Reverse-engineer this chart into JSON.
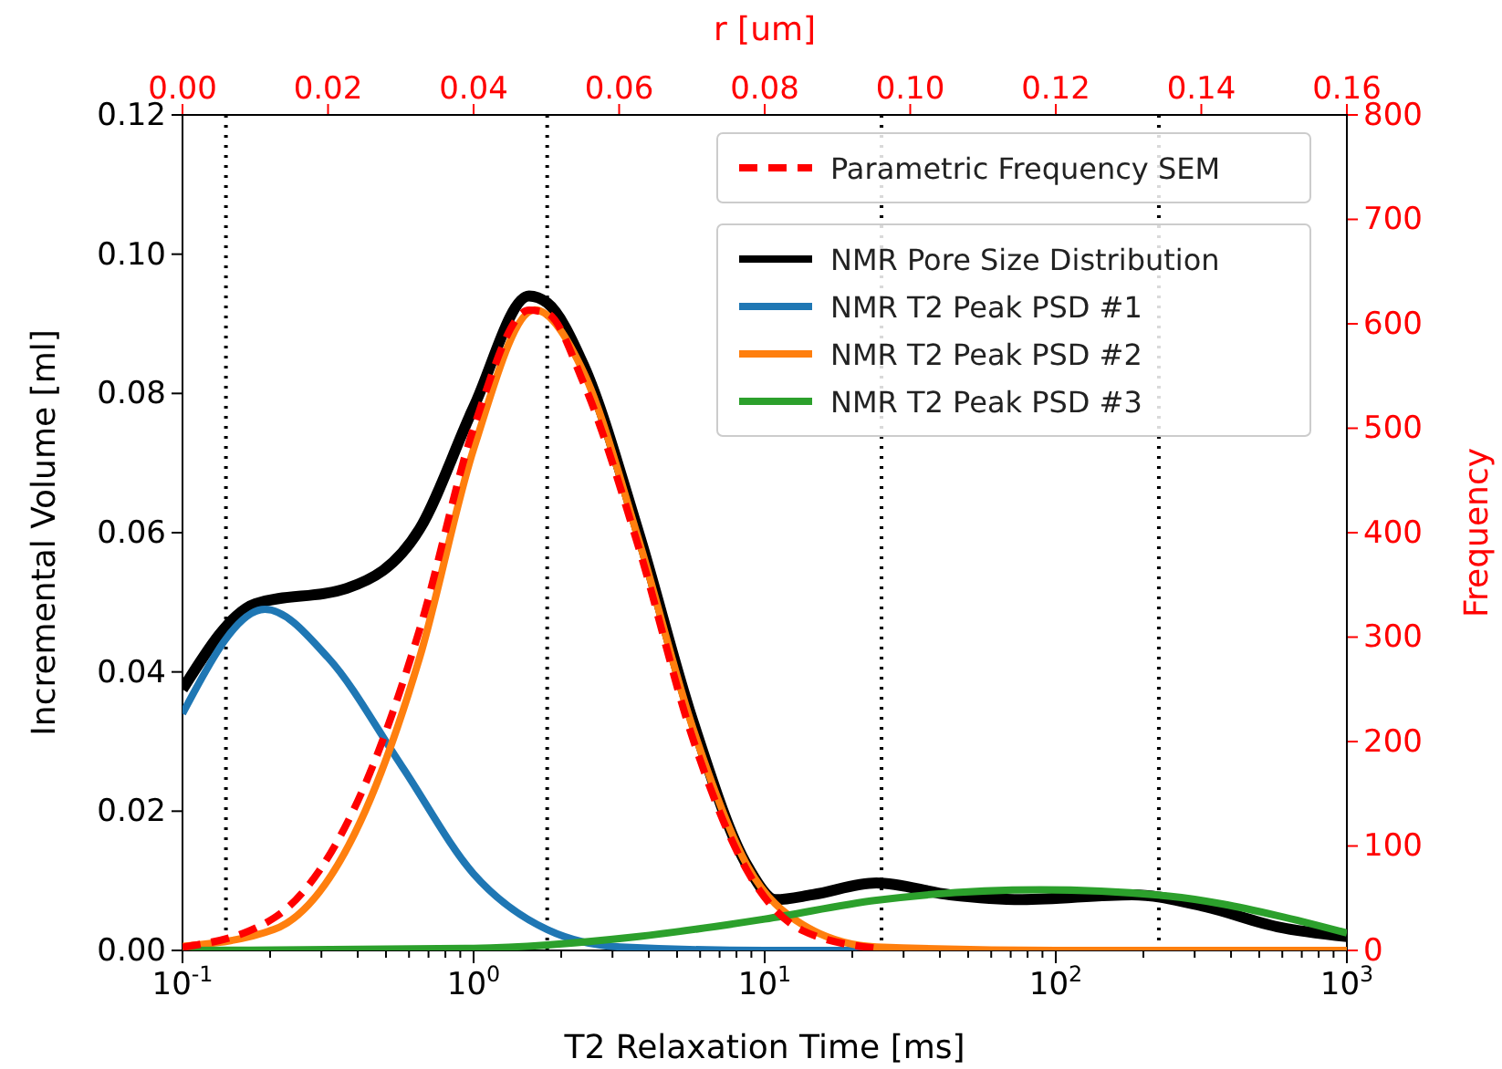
{
  "chart_data": {
    "type": "line",
    "xlabel": "T2 Relaxation Time [ms]",
    "ylabel": "Incremental Volume [ml]",
    "y2label": "Frequency",
    "x2label": "r [um]",
    "log": "x",
    "legend": "top right",
    "grid": false,
    "xlim": [
      0.1,
      1000
    ],
    "xticks": [
      {
        "value": 0.1,
        "label": "10$^{-1}$"
      },
      {
        "value": 0.2,
        "label": null
      },
      {
        "value": 0.3,
        "label": null
      },
      {
        "value": 0.4,
        "label": null
      },
      {
        "value": 0.5,
        "label": null
      },
      {
        "value": 0.6,
        "label": null
      },
      {
        "value": 0.7,
        "label": null
      },
      {
        "value": 0.8,
        "label": null
      },
      {
        "value": 0.9,
        "label": null
      },
      {
        "value": 1,
        "label": "10$^{0}$"
      },
      {
        "value": 2,
        "label": null
      },
      {
        "value": 3,
        "label": null
      },
      {
        "value": 4,
        "label": null
      },
      {
        "value": 5,
        "label": null
      },
      {
        "value": 6,
        "label": null
      },
      {
        "value": 7,
        "label": null
      },
      {
        "value": 8,
        "label": null
      },
      {
        "value": 9,
        "label": null
      },
      {
        "value": 10,
        "label": "10$^{1}$"
      },
      {
        "value": 20,
        "label": null
      },
      {
        "value": 30,
        "label": null
      },
      {
        "value": 40,
        "label": null
      },
      {
        "value": 50,
        "label": null
      },
      {
        "value": 60,
        "label": null
      },
      {
        "value": 70,
        "label": null
      },
      {
        "value": 80,
        "label": null
      },
      {
        "value": 90,
        "label": null
      },
      {
        "value": 100,
        "label": "10$^{2}$"
      },
      {
        "value": 200,
        "label": null
      },
      {
        "value": 300,
        "label": null
      },
      {
        "value": 400,
        "label": null
      },
      {
        "value": 500,
        "label": null
      },
      {
        "value": 600,
        "label": null
      },
      {
        "value": 700,
        "label": null
      },
      {
        "value": 800,
        "label": null
      },
      {
        "value": 900,
        "label": null
      },
      {
        "value": 1000,
        "label": "10$^{3}$"
      }
    ],
    "ylim": [
      0,
      0.12
    ],
    "yticks": [
      {
        "value": 0,
        "label": "0.00"
      },
      {
        "value": 0.02,
        "label": "0.02"
      },
      {
        "value": 0.04,
        "label": "0.04"
      },
      {
        "value": 0.06,
        "label": "0.06"
      },
      {
        "value": 0.08,
        "label": "0.08"
      },
      {
        "value": 0.1,
        "label": "0.10"
      },
      {
        "value": 0.12,
        "label": "0.12"
      }
    ],
    "y2lim": [
      0,
      800
    ],
    "y2ticks": [
      0,
      100,
      200,
      300,
      400,
      500,
      600,
      700,
      800
    ],
    "x2lim": [
      0,
      0.16
    ],
    "x2ticks": [
      {
        "value": 0,
        "label": "0.00"
      },
      {
        "value": 0.02,
        "label": "0.02"
      },
      {
        "value": 0.04,
        "label": "0.04"
      },
      {
        "value": 0.06,
        "label": "0.06"
      },
      {
        "value": 0.08,
        "label": "0.08"
      },
      {
        "value": 0.1,
        "label": "0.10"
      },
      {
        "value": 0.12,
        "label": "0.12"
      },
      {
        "value": 0.14,
        "label": "0.14"
      },
      {
        "value": 0.16,
        "label": "0.16"
      }
    ],
    "ref_lines": [
      {
        "axis": "x",
        "value": 0.141,
        "line_style": "dotted",
        "color": "#000000"
      },
      {
        "axis": "x",
        "value": 1.79,
        "line_style": "dotted",
        "color": "#000000"
      },
      {
        "axis": "x",
        "value": 25.2,
        "line_style": "dotted",
        "color": "#000000"
      },
      {
        "axis": "x",
        "value": 226,
        "line_style": "dotted",
        "color": "#000000"
      }
    ],
    "series": [
      {
        "name": "Parametric Frequency SEM",
        "color": "#ff0000",
        "axis": "y2",
        "line_style": "dashed",
        "x": [
          0.1,
          0.206,
          0.424,
          0.652,
          1.0,
          1.55,
          1.79,
          2.39,
          3.69,
          5.66,
          8.76,
          13.5,
          24.2
        ],
        "values": [
          3,
          31,
          159,
          307,
          500,
          613,
          610,
          543,
          386,
          203,
          75,
          19,
          2
        ]
      },
      {
        "name": "NMR Pore Size Distribution",
        "color": "#000000",
        "x": [
          0.1,
          0.178,
          0.366,
          0.652,
          1.0,
          1.55,
          1.79,
          2.39,
          3.69,
          5.66,
          8.76,
          10.9,
          14.6,
          24.2,
          43.3,
          76.6,
          183,
          325,
          577,
          1000
        ],
        "values": [
          0.0375,
          0.0498,
          0.052,
          0.0605,
          0.078,
          0.094,
          0.093,
          0.084,
          0.06,
          0.033,
          0.012,
          0.0073,
          0.008,
          0.0097,
          0.008,
          0.0073,
          0.008,
          0.0063,
          0.0034,
          0.002
        ]
      },
      {
        "name": "NMR T2 Peak PSD #1",
        "color": "#1f77b4",
        "x": [
          0.1,
          0.192,
          0.317,
          0.566,
          1.0,
          1.79,
          3.2,
          10,
          100,
          1000
        ],
        "values": [
          0.034,
          0.049,
          0.042,
          0.0265,
          0.011,
          0.003,
          0.0005,
          0,
          0,
          0
        ]
      },
      {
        "name": "NMR T2 Peak PSD #2",
        "color": "#ff7f0e",
        "x": [
          0.1,
          0.206,
          0.424,
          0.652,
          1.0,
          1.62,
          2.39,
          3.69,
          5.66,
          8.76,
          13.5,
          24.2,
          100,
          1000
        ],
        "values": [
          0.0006,
          0.003,
          0.02,
          0.042,
          0.072,
          0.092,
          0.083,
          0.059,
          0.032,
          0.012,
          0.0037,
          0.0005,
          0,
          0
        ]
      },
      {
        "name": "NMR T2 Peak PSD #3",
        "color": "#2ca02c",
        "x": [
          0.1,
          1.0,
          3.69,
          10,
          24.2,
          88.7,
          245,
          577,
          1000
        ],
        "values": [
          0,
          0.0003,
          0.002,
          0.0045,
          0.0072,
          0.0087,
          0.0078,
          0.005,
          0.0025
        ]
      }
    ]
  }
}
